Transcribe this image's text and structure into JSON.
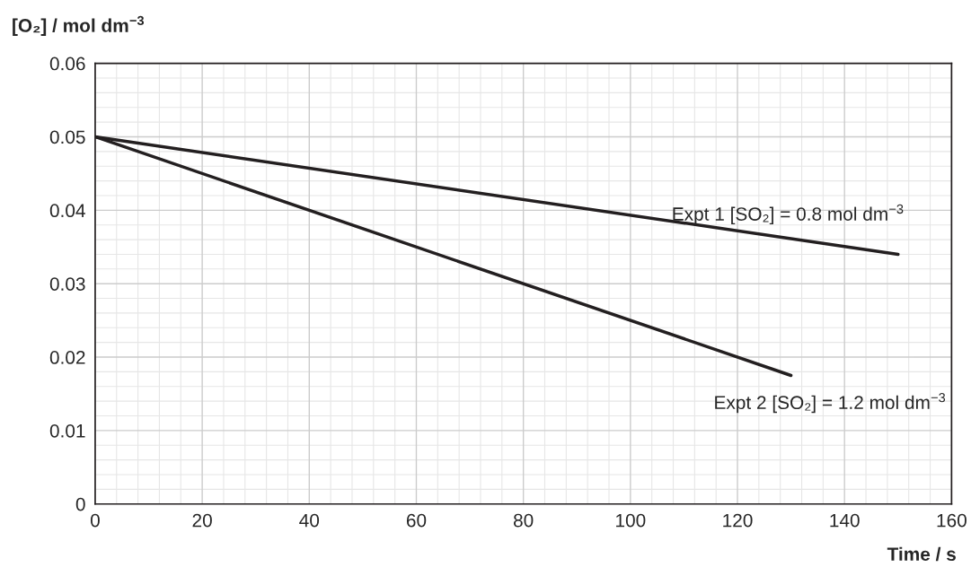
{
  "chart_data": {
    "type": "line",
    "xlabel": "Time / s",
    "ylabel": "[O₂] / mol dm$^{−3}$",
    "series": [
      {
        "name": "Expt 1 [SO₂] = 0.8 mol dm$^{−3}$",
        "color": "#231f20",
        "x": [
          0,
          150
        ],
        "values": [
          0.05,
          0.034
        ]
      },
      {
        "name": "Expt 2 [SO₂] = 1.2 mol dm$^{−3}$",
        "color": "#231f20",
        "x": [
          0,
          130
        ],
        "values": [
          0.05,
          0.0175
        ]
      }
    ],
    "xlim": [
      0,
      160
    ],
    "xticks": [
      0,
      20,
      40,
      60,
      80,
      100,
      120,
      140,
      160
    ],
    "ylim": [
      0,
      0.06
    ],
    "yticks": [
      {
        "value": 0,
        "label": "0"
      },
      0.01,
      0.02,
      0.03,
      0.04,
      0.05,
      0.06
    ],
    "grid": true,
    "legend": false,
    "marker": "none",
    "line_style": "solid"
  }
}
